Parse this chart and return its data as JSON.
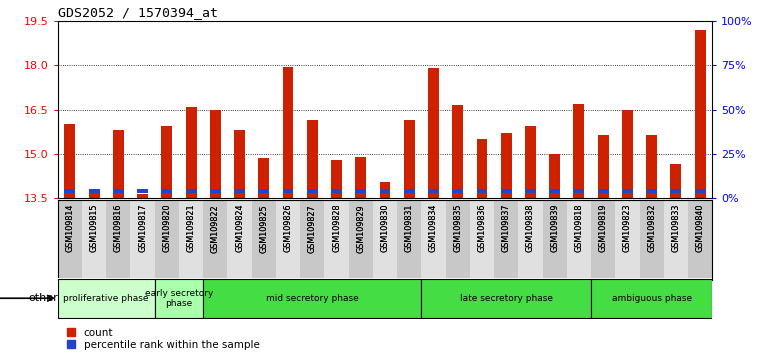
{
  "title": "GDS2052 / 1570394_at",
  "samples": [
    "GSM109814",
    "GSM109815",
    "GSM109816",
    "GSM109817",
    "GSM109820",
    "GSM109821",
    "GSM109822",
    "GSM109824",
    "GSM109825",
    "GSM109826",
    "GSM109827",
    "GSM109828",
    "GSM109829",
    "GSM109830",
    "GSM109831",
    "GSM109834",
    "GSM109835",
    "GSM109836",
    "GSM109837",
    "GSM109838",
    "GSM109839",
    "GSM109818",
    "GSM109819",
    "GSM109823",
    "GSM109832",
    "GSM109833",
    "GSM109840"
  ],
  "red_tops": [
    16.0,
    13.7,
    15.8,
    13.65,
    15.95,
    16.6,
    16.5,
    15.8,
    14.85,
    17.95,
    16.15,
    14.8,
    14.9,
    14.05,
    16.15,
    17.9,
    16.65,
    15.5,
    15.7,
    15.95,
    15.0,
    16.7,
    15.65,
    16.5,
    15.65,
    14.65,
    19.2
  ],
  "blue_pct": [
    7,
    7,
    8,
    5,
    9,
    11,
    12,
    9,
    8,
    12,
    9,
    8,
    8,
    8,
    9,
    13,
    12,
    8,
    8,
    10,
    8,
    11,
    9,
    11,
    10,
    8,
    15
  ],
  "phases": [
    {
      "label": "proliferative phase",
      "start": 0,
      "end": 4,
      "color": "#ccffcc"
    },
    {
      "label": "early secretory\nphase",
      "start": 4,
      "end": 6,
      "color": "#aaffaa"
    },
    {
      "label": "mid secretory phase",
      "start": 6,
      "end": 15,
      "color": "#44dd44"
    },
    {
      "label": "late secretory phase",
      "start": 15,
      "end": 22,
      "color": "#44dd44"
    },
    {
      "label": "ambiguous phase",
      "start": 22,
      "end": 27,
      "color": "#44dd44"
    }
  ],
  "ylim_left": [
    13.5,
    19.5
  ],
  "ylim_right": [
    0,
    100
  ],
  "yticks_left": [
    13.5,
    15.0,
    16.5,
    18.0,
    19.5
  ],
  "yticks_right": [
    0,
    25,
    50,
    75,
    100
  ],
  "bar_color_red": "#cc2200",
  "bar_color_blue": "#2244cc",
  "bar_width": 0.45,
  "other_label": "other"
}
